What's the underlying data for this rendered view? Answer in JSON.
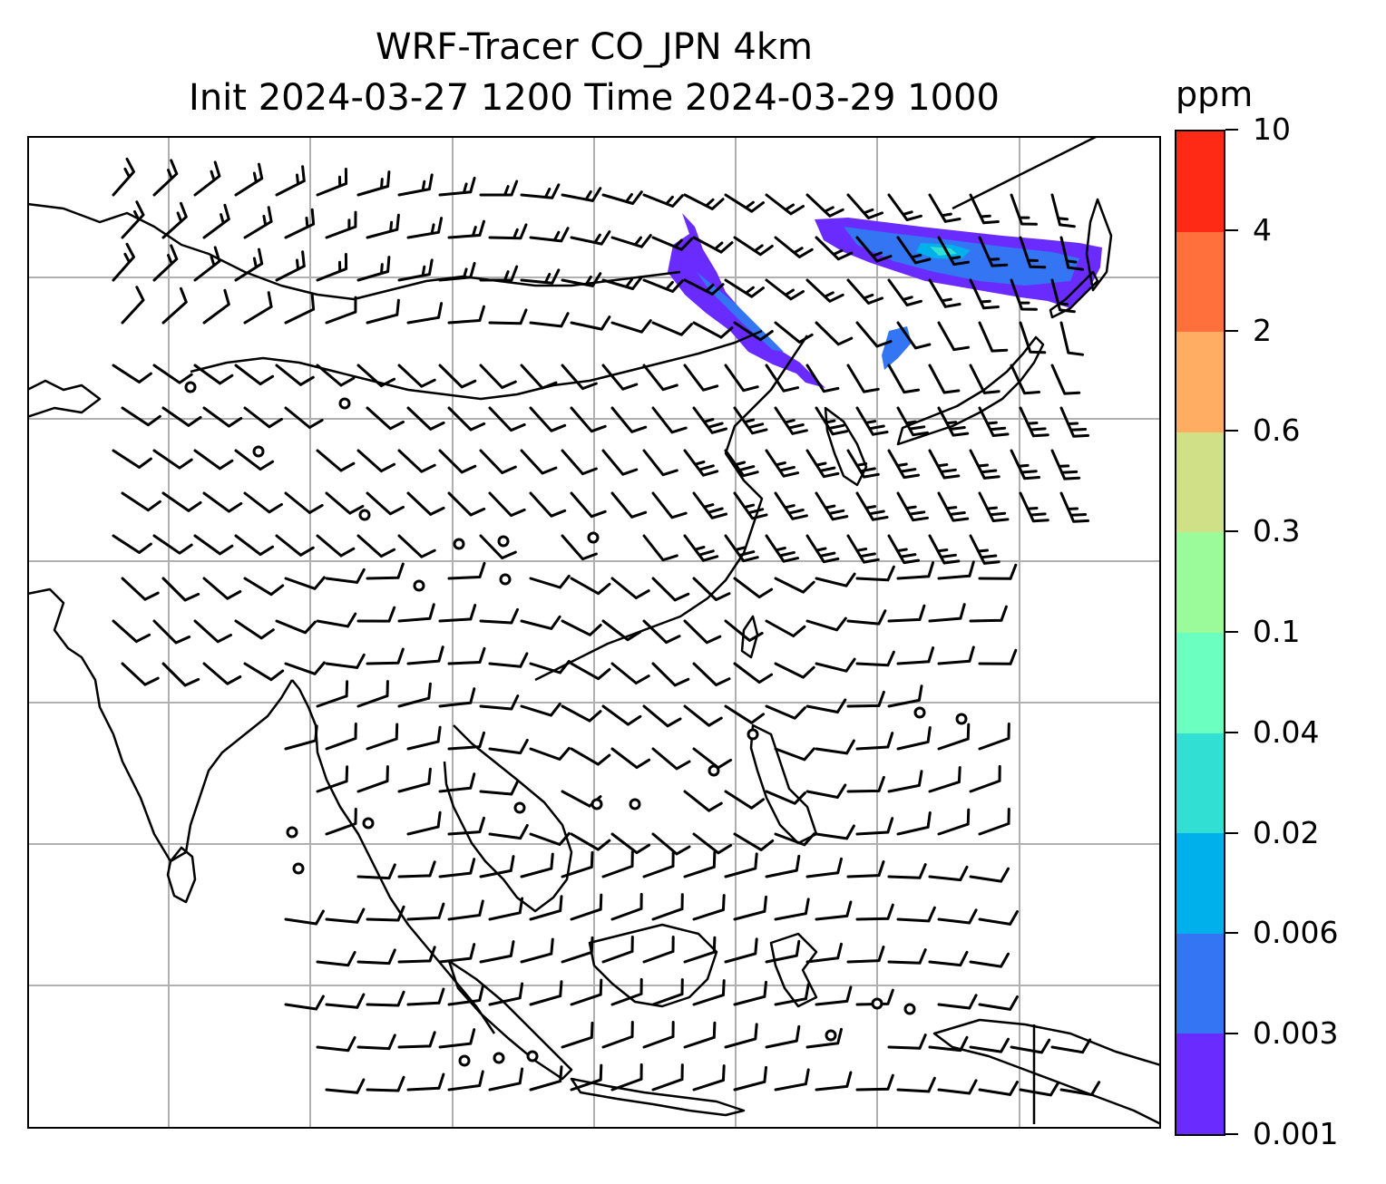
{
  "title": {
    "line1": "WRF-Tracer CO_JPN 4km",
    "line2": "Init 2024-03-27 1200 Time 2024-03-29 1000"
  },
  "colorbar": {
    "unit": "ppm",
    "levels": [
      "0.001",
      "0.003",
      "0.006",
      "0.02",
      "0.04",
      "0.1",
      "0.3",
      "0.6",
      "2",
      "4",
      "10"
    ],
    "colors": [
      "#6a2bff",
      "#3375f2",
      "#00b0ea",
      "#31e0d3",
      "#6bffc0",
      "#9bfa9a",
      "#d0e086",
      "#ffad62",
      "#ff703c",
      "#ff2a16"
    ]
  },
  "map": {
    "gridlines": "on",
    "plume_color_levels": [
      "0.001",
      "0.003",
      "0.006",
      "0.02"
    ],
    "wind_barbs": "shown",
    "calm_markers": "circles"
  }
}
